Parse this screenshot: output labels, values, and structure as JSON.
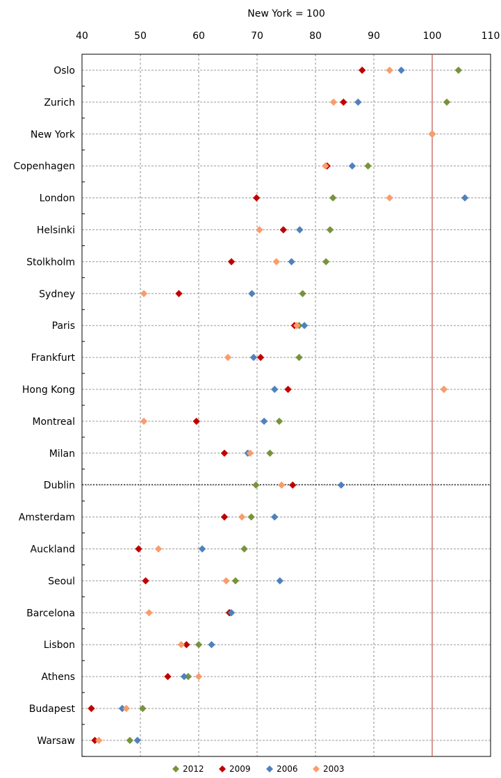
{
  "chart_data": {
    "type": "scatter",
    "title": "",
    "xlabel": "New York = 100",
    "ylabel": "",
    "xlim": [
      40,
      110
    ],
    "xticks": [
      "40",
      "50",
      "60",
      "70",
      "80",
      "90",
      "100",
      "110"
    ],
    "grid": true,
    "legend_position": "bottom",
    "reference_line": {
      "x": 100,
      "color": "#c0504d"
    },
    "categories": [
      "Oslo",
      "Zurich",
      "New York",
      "Copenhagen",
      "London",
      "Helsinki",
      "Stolkholm",
      "Sydney",
      "Paris",
      "Frankfurt",
      "Hong Kong",
      "Montreal",
      "Milan",
      "Dublin",
      "Amsterdam",
      "Auckland",
      "Seoul",
      "Barcelona",
      "Lisbon",
      "Athens",
      "Budapest",
      "Warsaw"
    ],
    "series": [
      {
        "name": "2012",
        "color": "#77933c",
        "values": [
          104.5,
          102.5,
          100,
          89,
          83,
          82.5,
          81.8,
          77.8,
          77.2,
          77.2,
          102,
          73.8,
          72.2,
          69.8,
          69,
          67.8,
          66.3,
          65.2,
          60,
          58.2,
          50.4,
          48.2
        ]
      },
      {
        "name": "2009",
        "color": "#c00000",
        "values": [
          88,
          84.8,
          100,
          82,
          69.9,
          74.5,
          65.6,
          56.6,
          76.4,
          70.6,
          75.3,
          59.6,
          64.4,
          76.1,
          64.4,
          49.7,
          50.9,
          65.3,
          57.9,
          54.7,
          41.6,
          42.2
        ]
      },
      {
        "name": "2006",
        "color": "#4f81bd",
        "values": [
          94.7,
          87.3,
          100,
          86.3,
          105.6,
          77.3,
          75.9,
          69.1,
          78.1,
          69.4,
          73,
          71.2,
          68.4,
          84.4,
          73,
          60.6,
          73.9,
          65.6,
          62.2,
          57.5,
          46.9,
          49.5
        ]
      },
      {
        "name": "2003",
        "color": "#fa9c6c",
        "values": [
          92.7,
          83.1,
          100,
          81.7,
          92.7,
          70.4,
          73.3,
          50.6,
          76.8,
          65,
          102,
          50.6,
          68.8,
          74.2,
          67.4,
          53.1,
          64.7,
          51.5,
          57,
          60,
          47.6,
          42.9
        ]
      }
    ]
  }
}
